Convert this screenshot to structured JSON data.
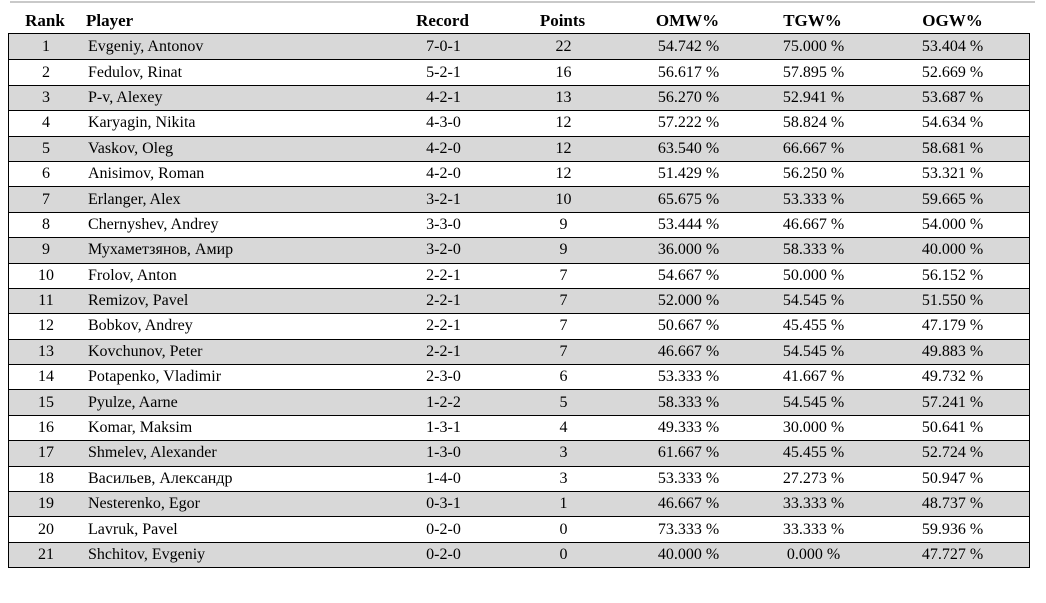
{
  "top_rule_color": "#c9c9c9",
  "colors": {
    "row_shaded": "#d8d8d8",
    "row_plain": "#ffffff",
    "border": "#000000",
    "text": "#000000"
  },
  "table": {
    "columns": [
      {
        "key": "rank",
        "label": "Rank"
      },
      {
        "key": "player",
        "label": "Player"
      },
      {
        "key": "record",
        "label": "Record"
      },
      {
        "key": "points",
        "label": "Points"
      },
      {
        "key": "omw",
        "label": "OMW%"
      },
      {
        "key": "tgw",
        "label": "TGW%"
      },
      {
        "key": "ogw",
        "label": "OGW%"
      }
    ],
    "rows": [
      {
        "rank": "1",
        "player": "Evgeniy, Antonov",
        "record": "7-0-1",
        "points": "22",
        "omw": "54.742 %",
        "tgw": "75.000 %",
        "ogw": "53.404 %"
      },
      {
        "rank": "2",
        "player": "Fedulov, Rinat",
        "record": "5-2-1",
        "points": "16",
        "omw": "56.617 %",
        "tgw": "57.895 %",
        "ogw": "52.669 %"
      },
      {
        "rank": "3",
        "player": "P-v, Alexey",
        "record": "4-2-1",
        "points": "13",
        "omw": "56.270 %",
        "tgw": "52.941 %",
        "ogw": "53.687 %"
      },
      {
        "rank": "4",
        "player": "Karyagin, Nikita",
        "record": "4-3-0",
        "points": "12",
        "omw": "57.222 %",
        "tgw": "58.824 %",
        "ogw": "54.634 %"
      },
      {
        "rank": "5",
        "player": "Vaskov, Oleg",
        "record": "4-2-0",
        "points": "12",
        "omw": "63.540 %",
        "tgw": "66.667 %",
        "ogw": "58.681 %"
      },
      {
        "rank": "6",
        "player": "Anisimov, Roman",
        "record": "4-2-0",
        "points": "12",
        "omw": "51.429 %",
        "tgw": "56.250 %",
        "ogw": "53.321 %"
      },
      {
        "rank": "7",
        "player": "Erlanger, Alex",
        "record": "3-2-1",
        "points": "10",
        "omw": "65.675 %",
        "tgw": "53.333 %",
        "ogw": "59.665 %"
      },
      {
        "rank": "8",
        "player": "Chernyshev, Andrey",
        "record": "3-3-0",
        "points": "9",
        "omw": "53.444 %",
        "tgw": "46.667 %",
        "ogw": "54.000 %"
      },
      {
        "rank": "9",
        "player": "Мухаметзянов, Амир",
        "record": "3-2-0",
        "points": "9",
        "omw": "36.000 %",
        "tgw": "58.333 %",
        "ogw": "40.000 %"
      },
      {
        "rank": "10",
        "player": "Frolov, Anton",
        "record": "2-2-1",
        "points": "7",
        "omw": "54.667 %",
        "tgw": "50.000 %",
        "ogw": "56.152 %"
      },
      {
        "rank": "11",
        "player": "Remizov, Pavel",
        "record": "2-2-1",
        "points": "7",
        "omw": "52.000 %",
        "tgw": "54.545 %",
        "ogw": "51.550 %"
      },
      {
        "rank": "12",
        "player": "Bobkov, Andrey",
        "record": "2-2-1",
        "points": "7",
        "omw": "50.667 %",
        "tgw": "45.455 %",
        "ogw": "47.179 %"
      },
      {
        "rank": "13",
        "player": "Kovchunov, Peter",
        "record": "2-2-1",
        "points": "7",
        "omw": "46.667 %",
        "tgw": "54.545 %",
        "ogw": "49.883 %"
      },
      {
        "rank": "14",
        "player": "Potapenko, Vladimir",
        "record": "2-3-0",
        "points": "6",
        "omw": "53.333 %",
        "tgw": "41.667 %",
        "ogw": "49.732 %"
      },
      {
        "rank": "15",
        "player": "Pyulze, Aarne",
        "record": "1-2-2",
        "points": "5",
        "omw": "58.333 %",
        "tgw": "54.545 %",
        "ogw": "57.241 %"
      },
      {
        "rank": "16",
        "player": "Komar, Maksim",
        "record": "1-3-1",
        "points": "4",
        "omw": "49.333 %",
        "tgw": "30.000 %",
        "ogw": "50.641 %"
      },
      {
        "rank": "17",
        "player": "Shmelev, Alexander",
        "record": "1-3-0",
        "points": "3",
        "omw": "61.667 %",
        "tgw": "45.455 %",
        "ogw": "52.724 %"
      },
      {
        "rank": "18",
        "player": "Васильев, Александр",
        "record": "1-4-0",
        "points": "3",
        "omw": "53.333 %",
        "tgw": "27.273 %",
        "ogw": "50.947 %"
      },
      {
        "rank": "19",
        "player": "Nesterenko, Egor",
        "record": "0-3-1",
        "points": "1",
        "omw": "46.667 %",
        "tgw": "33.333 %",
        "ogw": "48.737 %"
      },
      {
        "rank": "20",
        "player": "Lavruk, Pavel",
        "record": "0-2-0",
        "points": "0",
        "omw": "73.333 %",
        "tgw": "33.333 %",
        "ogw": "59.936 %"
      },
      {
        "rank": "21",
        "player": "Shchitov, Evgeniy",
        "record": "0-2-0",
        "points": "0",
        "omw": "40.000 %",
        "tgw": "0.000 %",
        "ogw": "47.727 %"
      }
    ]
  }
}
